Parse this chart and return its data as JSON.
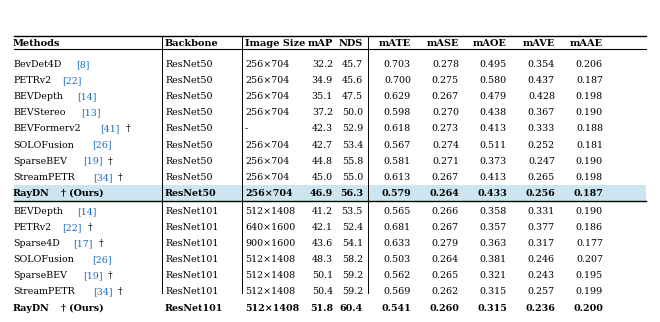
{
  "group1": [
    [
      "BevDet4D",
      "[8]",
      "",
      "ResNet50",
      "256×704",
      "32.2",
      "45.7",
      "0.703",
      "0.278",
      "0.495",
      "0.354",
      "0.206",
      false
    ],
    [
      "PETRv2",
      "[22]",
      "",
      "ResNet50",
      "256×704",
      "34.9",
      "45.6",
      "0.700",
      "0.275",
      "0.580",
      "0.437",
      "0.187",
      false
    ],
    [
      "BEVDepth",
      "[14]",
      "",
      "ResNet50",
      "256×704",
      "35.1",
      "47.5",
      "0.629",
      "0.267",
      "0.479",
      "0.428",
      "0.198",
      false
    ],
    [
      "BEVStereo",
      "[13]",
      "",
      "ResNet50",
      "256×704",
      "37.2",
      "50.0",
      "0.598",
      "0.270",
      "0.438",
      "0.367",
      "0.190",
      false
    ],
    [
      "BEVFormerv2",
      "[41]",
      "†",
      "ResNet50",
      "-",
      "42.3",
      "52.9",
      "0.618",
      "0.273",
      "0.413",
      "0.333",
      "0.188",
      false
    ],
    [
      "SOLOFusion",
      "[26]",
      "",
      "ResNet50",
      "256×704",
      "42.7",
      "53.4",
      "0.567",
      "0.274",
      "0.511",
      "0.252",
      "0.181",
      false
    ],
    [
      "SparseBEV",
      "[19]",
      "†",
      "ResNet50",
      "256×704",
      "44.8",
      "55.8",
      "0.581",
      "0.271",
      "0.373",
      "0.247",
      "0.190",
      false
    ],
    [
      "StreamPETR",
      "[34]",
      "†",
      "ResNet50",
      "256×704",
      "45.0",
      "55.0",
      "0.613",
      "0.267",
      "0.413",
      "0.265",
      "0.198",
      false
    ],
    [
      "RayDN",
      "",
      "† (Ours)",
      "ResNet50",
      "256×704",
      "46.9",
      "56.3",
      "0.579",
      "0.264",
      "0.433",
      "0.256",
      "0.187",
      true
    ]
  ],
  "group2": [
    [
      "BEVDepth",
      "[14]",
      "",
      "ResNet101",
      "512×1408",
      "41.2",
      "53.5",
      "0.565",
      "0.266",
      "0.358",
      "0.331",
      "0.190",
      false
    ],
    [
      "PETRv2",
      "[22]",
      "†",
      "ResNet101",
      "640×1600",
      "42.1",
      "52.4",
      "0.681",
      "0.267",
      "0.357",
      "0.377",
      "0.186",
      false
    ],
    [
      "Sparse4D",
      "[17]",
      "†",
      "ResNet101",
      "900×1600",
      "43.6",
      "54.1",
      "0.633",
      "0.279",
      "0.363",
      "0.317",
      "0.177",
      false
    ],
    [
      "SOLOFusion",
      "[26]",
      "",
      "ResNet101",
      "512×1408",
      "48.3",
      "58.2",
      "0.503",
      "0.264",
      "0.381",
      "0.246",
      "0.207",
      false
    ],
    [
      "SparseBEV",
      "[19]",
      "†",
      "ResNet101",
      "512×1408",
      "50.1",
      "59.2",
      "0.562",
      "0.265",
      "0.321",
      "0.243",
      "0.195",
      false
    ],
    [
      "StreamPETR",
      "[34]",
      "†",
      "ResNet101",
      "512×1408",
      "50.4",
      "59.2",
      "0.569",
      "0.262",
      "0.315",
      "0.257",
      "0.199",
      false
    ],
    [
      "RayDN",
      "",
      "† (Ours)",
      "ResNet101",
      "512×1408",
      "51.8",
      "60.4",
      "0.541",
      "0.260",
      "0.315",
      "0.236",
      "0.200",
      true
    ]
  ],
  "cite_color": "#1a6fbd",
  "ours_bg": "#cce5f0",
  "font_size": 6.8,
  "header_font_size": 7.0
}
